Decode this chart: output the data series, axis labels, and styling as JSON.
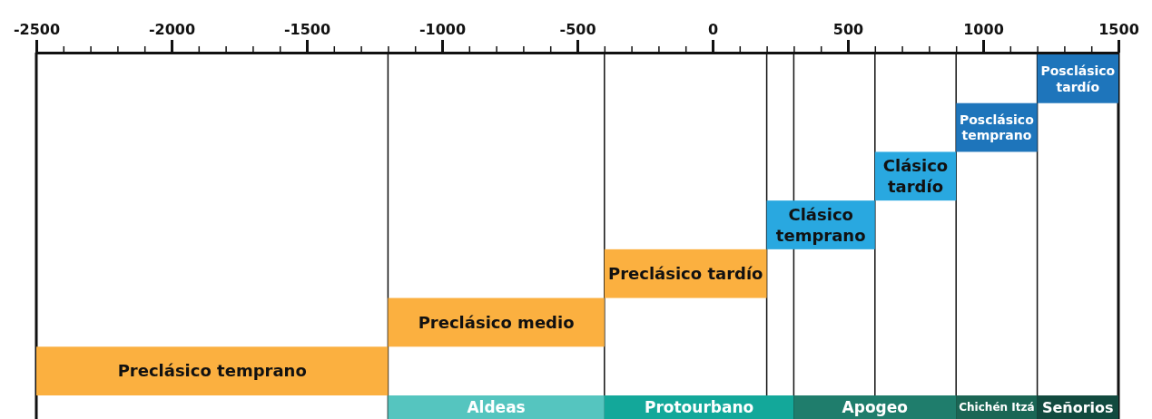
{
  "chart_data": {
    "type": "bar",
    "orientation": "horizontal",
    "categories": [
      "Posclásico tardío",
      "Posclásico temprano",
      "Clásico tardío",
      "Clásico temprano",
      "Preclásico tardío",
      "Preclásico medio",
      "Preclásico temprano"
    ],
    "values": [
      300,
      300,
      300,
      400,
      600,
      800,
      1300
    ],
    "base": [
      1200,
      900,
      600,
      200,
      -400,
      -1200,
      -2500
    ],
    "colors": [
      "#1e75bb",
      "#1e75bb",
      "#29a8e0",
      "#29a8e0",
      "#fbb040",
      "#fbb040",
      "#fbb040"
    ],
    "xlim": [
      -2500,
      1500
    ],
    "xticks": [
      -2500,
      {
        "value": -2400,
        "label": null
      },
      {
        "value": -2300,
        "label": null
      },
      {
        "value": -2200,
        "label": null
      },
      {
        "value": -2100,
        "label": null
      },
      -2000,
      {
        "value": -1900,
        "label": null
      },
      {
        "value": -1800,
        "label": null
      },
      {
        "value": -1700,
        "label": null
      },
      {
        "value": -1600,
        "label": null
      },
      -1500,
      {
        "value": -1400,
        "label": null
      },
      {
        "value": -1300,
        "label": null
      },
      {
        "value": -1200,
        "label": null
      },
      {
        "value": -1100,
        "label": null
      },
      -1000,
      {
        "value": -900,
        "label": null
      },
      {
        "value": -800,
        "label": null
      },
      {
        "value": -700,
        "label": null
      },
      {
        "value": -600,
        "label": null
      },
      -500,
      {
        "value": -400,
        "label": null
      },
      {
        "value": -300,
        "label": null
      },
      {
        "value": -200,
        "label": null
      },
      {
        "value": -100,
        "label": null
      },
      0,
      {
        "value": 100,
        "label": null
      },
      {
        "value": 200,
        "label": null
      },
      {
        "value": 300,
        "label": null
      },
      {
        "value": 400,
        "label": null
      },
      500,
      {
        "value": 600,
        "label": null
      },
      {
        "value": 700,
        "label": null
      },
      {
        "value": 800,
        "label": null
      },
      {
        "value": 900,
        "label": null
      },
      1000,
      {
        "value": 1100,
        "label": null
      },
      {
        "value": 1200,
        "label": null
      },
      {
        "value": 1300,
        "label": null
      },
      {
        "value": 1400,
        "label": null
      },
      1500
    ],
    "bands": [
      {
        "axis": "x",
        "from": -1200,
        "to": -400,
        "label": "Aldeas",
        "color": "#55c5bf"
      },
      {
        "axis": "x",
        "from": -400,
        "to": 300,
        "label": "Protourbano",
        "color": "#13a89a"
      },
      {
        "axis": "x",
        "from": 300,
        "to": 900,
        "label": "Apogeo",
        "color": "#1f7d6c"
      },
      {
        "axis": "x",
        "from": 900,
        "to": 1200,
        "label": "Chichén Itzá",
        "color": "#1b6655"
      },
      {
        "axis": "x",
        "from": 1200,
        "to": 1500,
        "label": "Señorios",
        "color": "#124a3f"
      }
    ],
    "ref_lines": [
      {
        "axis": "x",
        "value": -2500
      },
      {
        "axis": "x",
        "value": -1200
      },
      {
        "axis": "x",
        "value": -400
      },
      {
        "axis": "x",
        "value": 200
      },
      {
        "axis": "x",
        "value": 300
      },
      {
        "axis": "x",
        "value": 600
      },
      {
        "axis": "x",
        "value": 900
      },
      {
        "axis": "x",
        "value": 1200
      },
      {
        "axis": "x",
        "value": 1500
      }
    ]
  }
}
